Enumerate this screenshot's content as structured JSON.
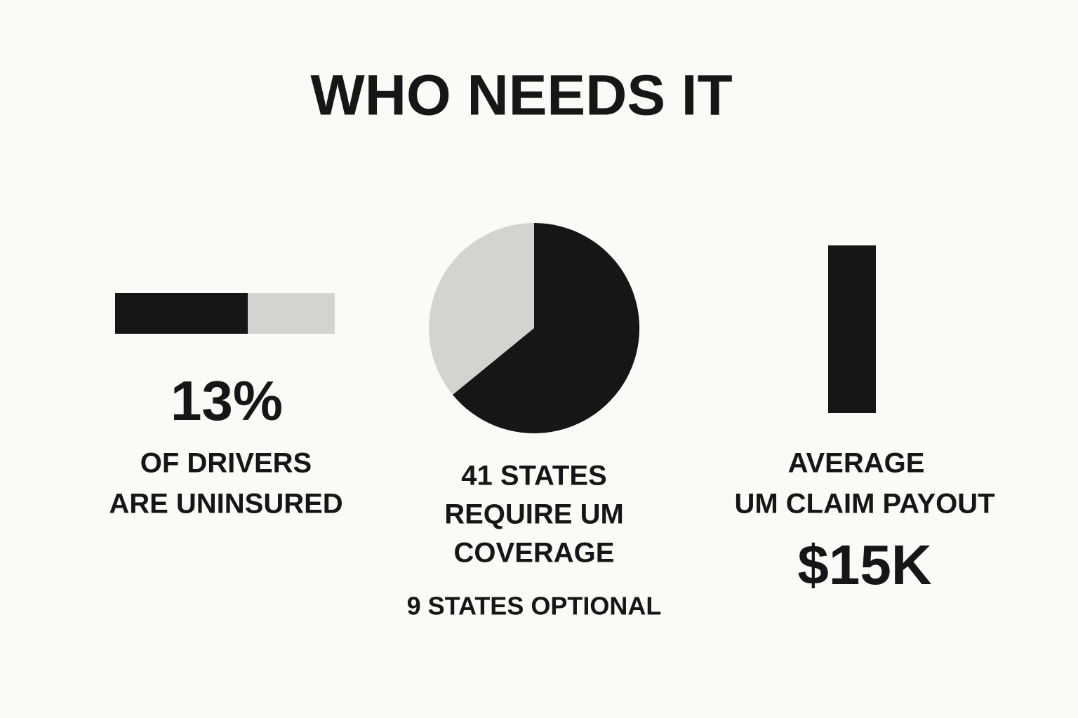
{
  "title": "WHO NEEDS IT",
  "panels": [
    {
      "stat": "13%",
      "caption": [
        "OF DRIVERS",
        "ARE UNINSURED"
      ]
    },
    {
      "caption": [
        "41 STATES",
        "REQUIRE UM",
        "COVERAGE"
      ],
      "note": "9 STATES OPTIONAL"
    },
    {
      "caption": [
        "AVERAGE",
        "UM CLAIM PAYOUT"
      ],
      "stat": "$15K"
    }
  ]
}
